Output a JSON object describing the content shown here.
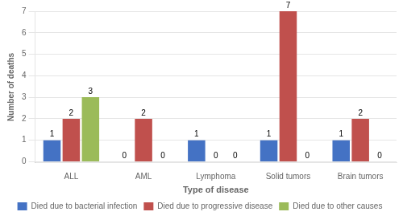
{
  "chart_data": {
    "type": "bar",
    "categories": [
      "ALL",
      "AML",
      "Lymphoma",
      "Solid tumors",
      "Brain tumors"
    ],
    "series": [
      {
        "name": "Died due to bacterial infection",
        "color": "#4472C4",
        "values": [
          1,
          0,
          1,
          1,
          1
        ]
      },
      {
        "name": "Died due to progressive disease",
        "color": "#C0504D",
        "values": [
          2,
          2,
          0,
          7,
          2
        ]
      },
      {
        "name": "Died due to other causes",
        "color": "#9BBB59",
        "values": [
          3,
          0,
          0,
          0,
          0
        ]
      }
    ],
    "xlabel": "Type of disease",
    "ylabel": "Number of deaths",
    "ylim": [
      -0.05,
      7
    ],
    "yticks": [
      0,
      1,
      2,
      3,
      4,
      5,
      6,
      7
    ],
    "grid": true,
    "legend": "bottom",
    "data_labels": true
  }
}
